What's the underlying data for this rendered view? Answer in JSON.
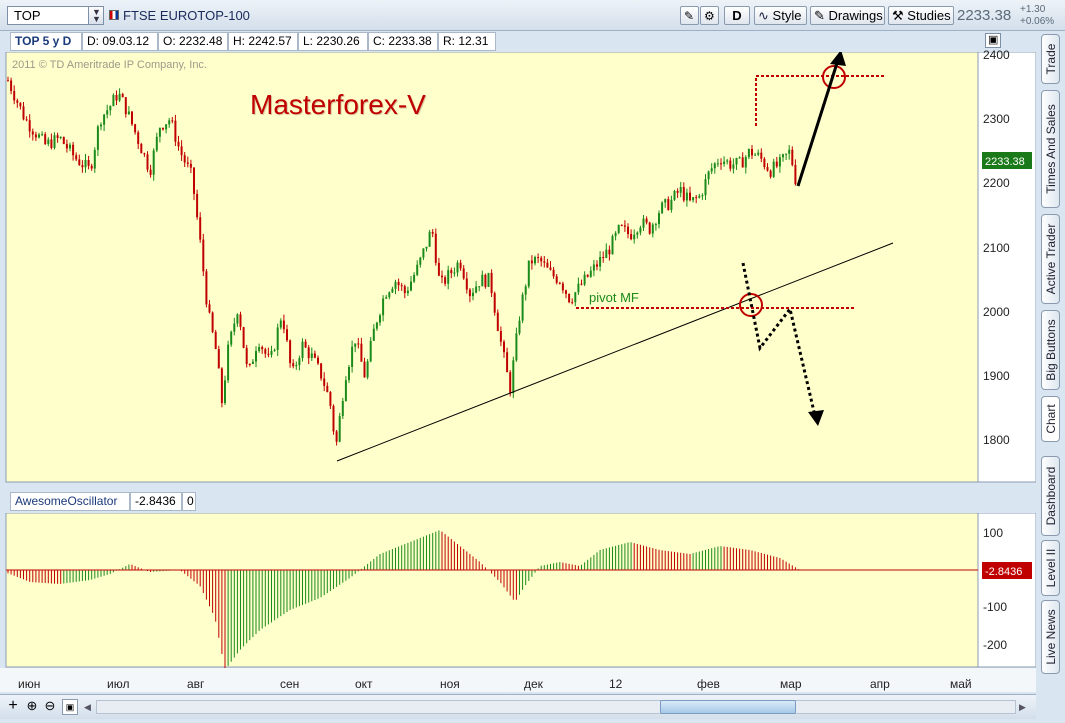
{
  "symbol_box": {
    "value": "TOP"
  },
  "instrument_title": "FTSE EUROTOP-100",
  "toolbar": {
    "d_label": "D",
    "style_label": "Style",
    "drawings_label": "Drawings",
    "studies_label": "Studies",
    "last_price": "2233.38",
    "change_abs": "+1.30",
    "change_pct": "+0.06%"
  },
  "info_bar": {
    "label": "TOP 5 y D",
    "date": "D: 09.03.12",
    "open": "O: 2232.48",
    "high": "H: 2242.57",
    "low": "L: 2230.26",
    "close": "C: 2233.38",
    "range": "R: 12.31"
  },
  "copyright": "2011 © TD Ameritrade IP Company, Inc.",
  "watermark": "Masterforex-V",
  "annotation_pivot": "pivot MF",
  "price_axis": {
    "ticks": [
      "2400",
      "2300",
      "2200",
      "2100",
      "2000",
      "1900",
      "1800"
    ],
    "last_price_tag": "2233.38"
  },
  "oscillator": {
    "name": "AwesomeOscillator",
    "value": "-2.8436",
    "zero": "0",
    "ticks": [
      "100",
      "-100",
      "-200"
    ],
    "value_tag": "-2.8436"
  },
  "months": [
    "июн",
    "июл",
    "авг",
    "сен",
    "окт",
    "ноя",
    "дек",
    "12",
    "фев",
    "мар",
    "апр",
    "май"
  ],
  "side_tabs": [
    "Trade",
    "Times And Sales",
    "Active Trader",
    "Big Buttons",
    "Chart",
    "Dashboard",
    "Level II",
    "Live News"
  ],
  "colors": {
    "up": "#1a8a1a",
    "down": "#c00000",
    "chart_bg": "#ffffcc",
    "annotation": "#c00000"
  },
  "chart_data": [
    {
      "type": "candlestick",
      "title": "FTSE EUROTOP-100",
      "ylim": [
        1740,
        2430
      ],
      "x": [
        "июн",
        "июл",
        "авг",
        "сен",
        "окт",
        "ноя",
        "дек",
        "12",
        "фев",
        "мар",
        "апр",
        "май"
      ],
      "close_path": [
        [
          0,
          2330
        ],
        [
          8,
          2360
        ],
        [
          25,
          2300
        ],
        [
          45,
          2260
        ],
        [
          60,
          2270
        ],
        [
          75,
          2240
        ],
        [
          90,
          2220
        ],
        [
          100,
          2300
        ],
        [
          110,
          2320
        ],
        [
          118,
          2340
        ],
        [
          125,
          2320
        ],
        [
          135,
          2280
        ],
        [
          150,
          2220
        ],
        [
          160,
          2290
        ],
        [
          170,
          2300
        ],
        [
          180,
          2250
        ],
        [
          192,
          2210
        ],
        [
          200,
          2110
        ],
        [
          208,
          2000
        ],
        [
          216,
          1940
        ],
        [
          222,
          1860
        ],
        [
          228,
          1940
        ],
        [
          238,
          2010
        ],
        [
          248,
          1900
        ],
        [
          258,
          1960
        ],
        [
          270,
          1920
        ],
        [
          282,
          2000
        ],
        [
          292,
          1900
        ],
        [
          302,
          1950
        ],
        [
          312,
          1930
        ],
        [
          322,
          1900
        ],
        [
          330,
          1860
        ],
        [
          336,
          1790
        ],
        [
          345,
          1900
        ],
        [
          355,
          1960
        ],
        [
          365,
          1900
        ],
        [
          375,
          1980
        ],
        [
          385,
          2030
        ],
        [
          395,
          2050
        ],
        [
          405,
          2030
        ],
        [
          418,
          2070
        ],
        [
          432,
          2130
        ],
        [
          440,
          2040
        ],
        [
          450,
          2060
        ],
        [
          460,
          2080
        ],
        [
          470,
          2030
        ],
        [
          480,
          2050
        ],
        [
          490,
          2050
        ],
        [
          500,
          1960
        ],
        [
          510,
          1880
        ],
        [
          520,
          2000
        ],
        [
          530,
          2080
        ],
        [
          540,
          2080
        ],
        [
          550,
          2060
        ],
        [
          560,
          2050
        ],
        [
          570,
          2020
        ],
        [
          580,
          2040
        ],
        [
          590,
          2060
        ],
        [
          600,
          2080
        ],
        [
          610,
          2100
        ],
        [
          620,
          2130
        ],
        [
          630,
          2120
        ],
        [
          640,
          2140
        ],
        [
          650,
          2130
        ],
        [
          660,
          2160
        ],
        [
          670,
          2170
        ],
        [
          680,
          2190
        ],
        [
          690,
          2170
        ],
        [
          700,
          2180
        ],
        [
          710,
          2220
        ],
        [
          720,
          2240
        ],
        [
          730,
          2230
        ],
        [
          740,
          2230
        ],
        [
          750,
          2250
        ],
        [
          760,
          2240
        ],
        [
          770,
          2220
        ],
        [
          780,
          2230
        ],
        [
          790,
          2250
        ],
        [
          797,
          2195
        ]
      ],
      "oscillator_path": [
        [
          0,
          0
        ],
        [
          30,
          -30
        ],
        [
          60,
          -35
        ],
        [
          90,
          -25
        ],
        [
          110,
          -10
        ],
        [
          130,
          15
        ],
        [
          150,
          -5
        ],
        [
          180,
          0
        ],
        [
          200,
          -40
        ],
        [
          215,
          -120
        ],
        [
          225,
          -250
        ],
        [
          240,
          -200
        ],
        [
          260,
          -150
        ],
        [
          290,
          -100
        ],
        [
          320,
          -70
        ],
        [
          350,
          -20
        ],
        [
          380,
          40
        ],
        [
          400,
          60
        ],
        [
          420,
          80
        ],
        [
          440,
          100
        ],
        [
          460,
          60
        ],
        [
          480,
          20
        ],
        [
          500,
          -30
        ],
        [
          515,
          -80
        ],
        [
          525,
          -40
        ],
        [
          540,
          10
        ],
        [
          560,
          20
        ],
        [
          580,
          10
        ],
        [
          600,
          50
        ],
        [
          630,
          70
        ],
        [
          660,
          50
        ],
        [
          690,
          40
        ],
        [
          720,
          60
        ],
        [
          750,
          50
        ],
        [
          780,
          30
        ],
        [
          800,
          0
        ]
      ],
      "annotations": [
        "Masterforex-V",
        "pivot MF"
      ]
    }
  ]
}
